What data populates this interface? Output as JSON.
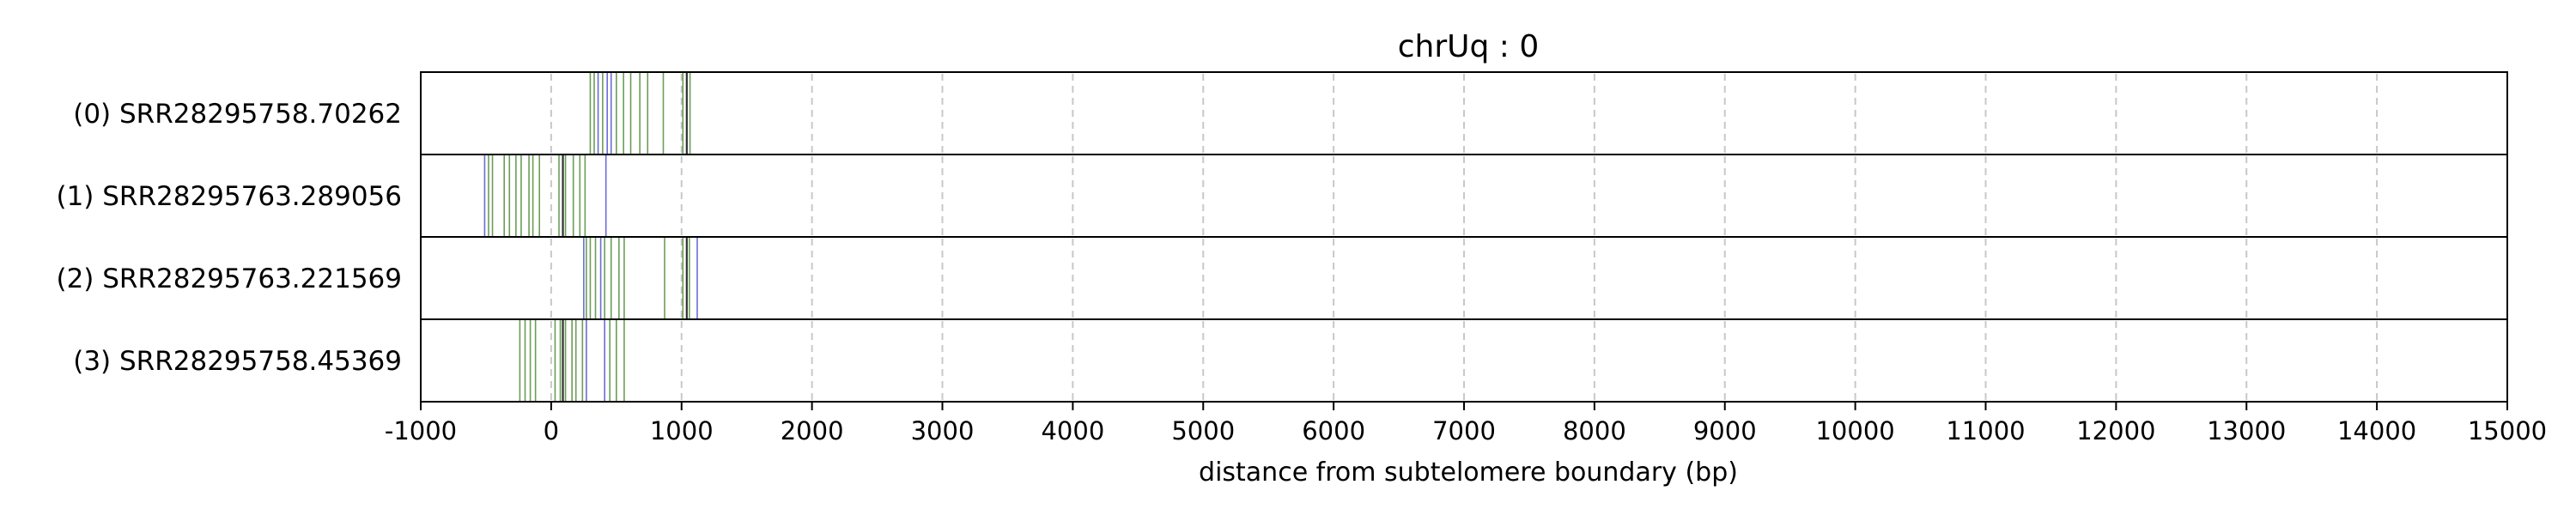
{
  "chart_data": {
    "type": "barcode",
    "title": "chrUq : 0",
    "xlabel": "distance from subtelomere boundary (bp)",
    "ylabel": "",
    "xlim": [
      -1000,
      15000
    ],
    "xticks": [
      -1000,
      0,
      1000,
      2000,
      3000,
      4000,
      5000,
      6000,
      7000,
      8000,
      9000,
      10000,
      11000,
      12000,
      13000,
      14000,
      15000
    ],
    "xgrid": "dashed vertical at each tick",
    "colors": {
      "green": "#3a7d1e",
      "blue": "#3a3acc",
      "dark": "#1a1a1a",
      "grid": "#c8c8c8"
    },
    "reads": [
      {
        "label": "(0) SRR28295758.70262",
        "marks": [
          {
            "x": 300,
            "c": "green"
          },
          {
            "x": 330,
            "c": "green"
          },
          {
            "x": 360,
            "c": "blue"
          },
          {
            "x": 395,
            "c": "green"
          },
          {
            "x": 430,
            "c": "blue"
          },
          {
            "x": 460,
            "c": "blue"
          },
          {
            "x": 500,
            "c": "green"
          },
          {
            "x": 555,
            "c": "green"
          },
          {
            "x": 610,
            "c": "green"
          },
          {
            "x": 680,
            "c": "green"
          },
          {
            "x": 740,
            "c": "green"
          },
          {
            "x": 860,
            "c": "green"
          },
          {
            "x": 1010,
            "c": "green"
          },
          {
            "x": 1040,
            "c": "dark"
          },
          {
            "x": 1065,
            "c": "green"
          }
        ]
      },
      {
        "label": "(1) SRR28295763.289056",
        "marks": [
          {
            "x": -510,
            "c": "blue"
          },
          {
            "x": -480,
            "c": "green"
          },
          {
            "x": -450,
            "c": "green"
          },
          {
            "x": -360,
            "c": "green"
          },
          {
            "x": -320,
            "c": "green"
          },
          {
            "x": -270,
            "c": "green"
          },
          {
            "x": -230,
            "c": "green"
          },
          {
            "x": -170,
            "c": "green"
          },
          {
            "x": -140,
            "c": "green"
          },
          {
            "x": -90,
            "c": "green"
          },
          {
            "x": 60,
            "c": "green"
          },
          {
            "x": 90,
            "c": "dark"
          },
          {
            "x": 110,
            "c": "green"
          },
          {
            "x": 170,
            "c": "green"
          },
          {
            "x": 220,
            "c": "green"
          },
          {
            "x": 260,
            "c": "green"
          },
          {
            "x": 420,
            "c": "blue"
          }
        ]
      },
      {
        "label": "(2) SRR28295763.221569",
        "marks": [
          {
            "x": 250,
            "c": "blue"
          },
          {
            "x": 270,
            "c": "green"
          },
          {
            "x": 300,
            "c": "green"
          },
          {
            "x": 340,
            "c": "green"
          },
          {
            "x": 380,
            "c": "blue"
          },
          {
            "x": 410,
            "c": "green"
          },
          {
            "x": 460,
            "c": "green"
          },
          {
            "x": 520,
            "c": "green"
          },
          {
            "x": 560,
            "c": "green"
          },
          {
            "x": 870,
            "c": "green"
          },
          {
            "x": 1010,
            "c": "green"
          },
          {
            "x": 1040,
            "c": "dark"
          },
          {
            "x": 1060,
            "c": "green"
          },
          {
            "x": 1120,
            "c": "blue"
          }
        ]
      },
      {
        "label": "(3) SRR28295758.45369",
        "marks": [
          {
            "x": -240,
            "c": "green"
          },
          {
            "x": -200,
            "c": "green"
          },
          {
            "x": -160,
            "c": "green"
          },
          {
            "x": -120,
            "c": "green"
          },
          {
            "x": 30,
            "c": "green"
          },
          {
            "x": 70,
            "c": "green"
          },
          {
            "x": 90,
            "c": "dark"
          },
          {
            "x": 110,
            "c": "green"
          },
          {
            "x": 160,
            "c": "green"
          },
          {
            "x": 190,
            "c": "green"
          },
          {
            "x": 240,
            "c": "green"
          },
          {
            "x": 270,
            "c": "blue"
          },
          {
            "x": 410,
            "c": "blue"
          },
          {
            "x": 450,
            "c": "green"
          },
          {
            "x": 500,
            "c": "green"
          },
          {
            "x": 560,
            "c": "green"
          }
        ]
      }
    ]
  }
}
